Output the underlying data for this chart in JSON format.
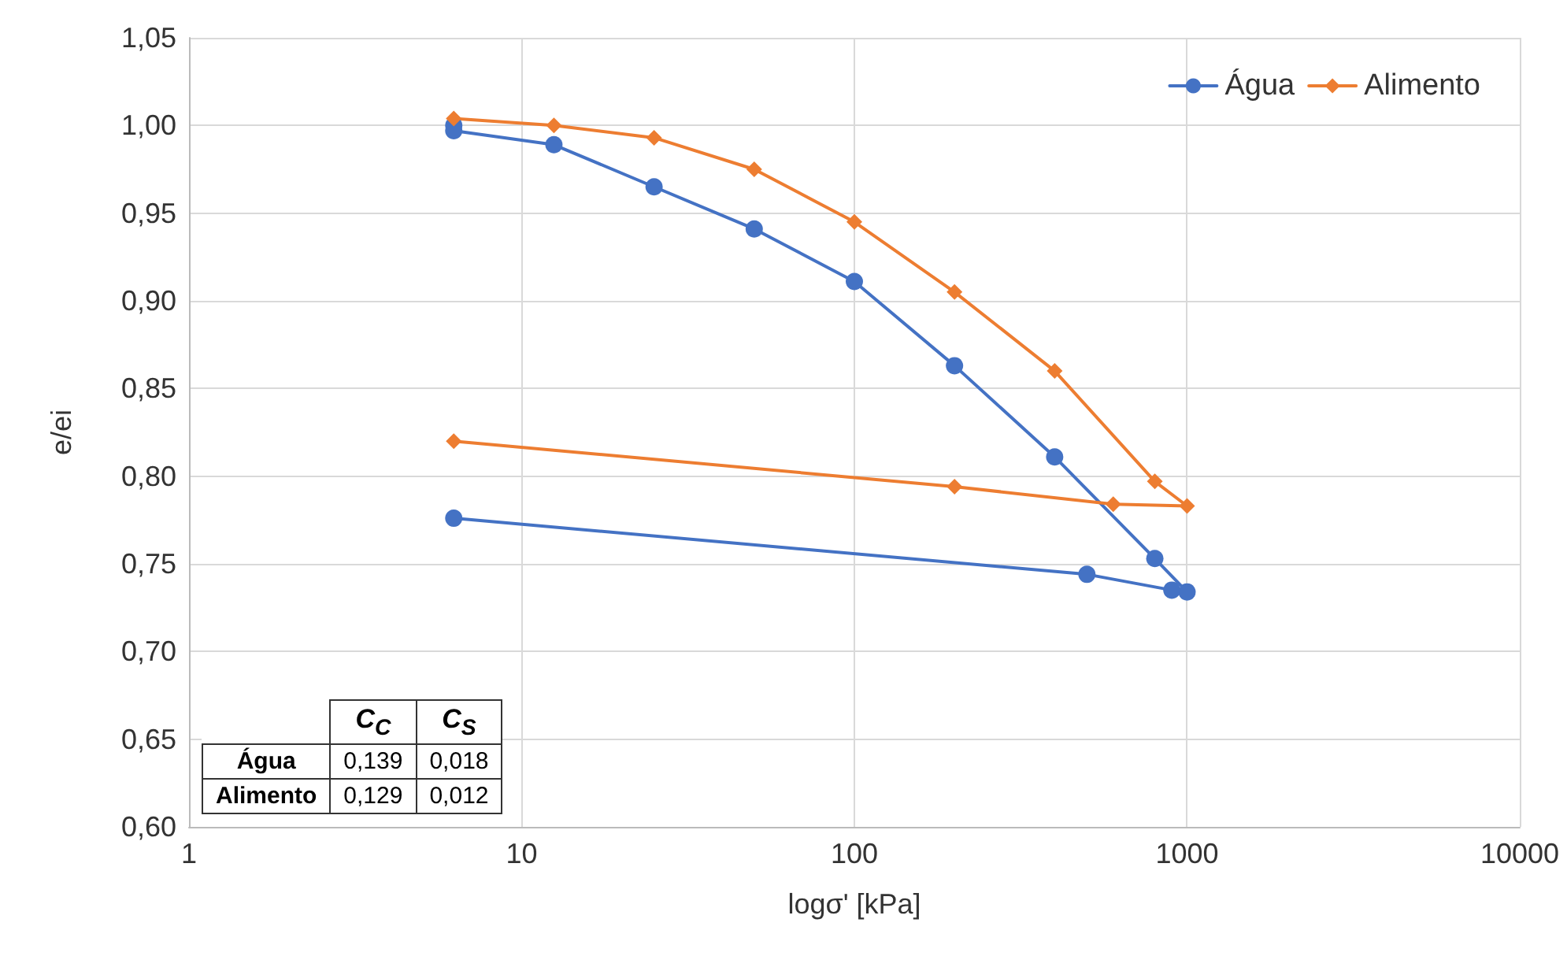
{
  "chart_data": {
    "type": "line",
    "xlabel": "logσ' [kPa]",
    "ylabel": "e/ei",
    "log": "x",
    "grid": true,
    "legend": "top right",
    "xlim": [
      1,
      10000
    ],
    "xticks": [
      1,
      10,
      100,
      1000,
      10000
    ],
    "ylim": [
      0.6,
      1.05
    ],
    "yticks": [
      {
        "value": 0.6,
        "label": "0,60"
      },
      {
        "value": 0.65,
        "label": "0,65"
      },
      {
        "value": 0.7,
        "label": "0,70"
      },
      {
        "value": 0.75,
        "label": "0,75"
      },
      {
        "value": 0.8,
        "label": "0,80"
      },
      {
        "value": 0.85,
        "label": "0,85"
      },
      {
        "value": 0.9,
        "label": "0,90"
      },
      {
        "value": 0.95,
        "label": "0,95"
      },
      {
        "value": 1.0,
        "label": "1,00"
      },
      {
        "value": 1.05,
        "label": "1,05"
      }
    ],
    "series": [
      {
        "name": "Água",
        "color": "#4472c4",
        "marker": "circle",
        "x": [
          6.25,
          6.25,
          12.5,
          25,
          50,
          100,
          200,
          400,
          800,
          1000,
          900,
          500,
          6.25
        ],
        "values": [
          1.0,
          0.997,
          0.989,
          0.965,
          0.941,
          0.911,
          0.863,
          0.811,
          0.753,
          0.734,
          0.735,
          0.744,
          0.776
        ]
      },
      {
        "name": "Alimento",
        "color": "#ed7d31",
        "marker": "diamond",
        "x": [
          6.25,
          12.5,
          25,
          50,
          100,
          200,
          400,
          800,
          1000,
          600,
          200,
          6.25
        ],
        "values": [
          1.004,
          1.0,
          0.993,
          0.975,
          0.945,
          0.905,
          0.86,
          0.797,
          0.783,
          0.784,
          0.794,
          0.82
        ]
      }
    ],
    "annotations": [
      "C$_{C}$",
      "C$_{S}$",
      "Água",
      "0,139",
      "0,018",
      "Alimento",
      "0,129",
      "0,012"
    ]
  }
}
